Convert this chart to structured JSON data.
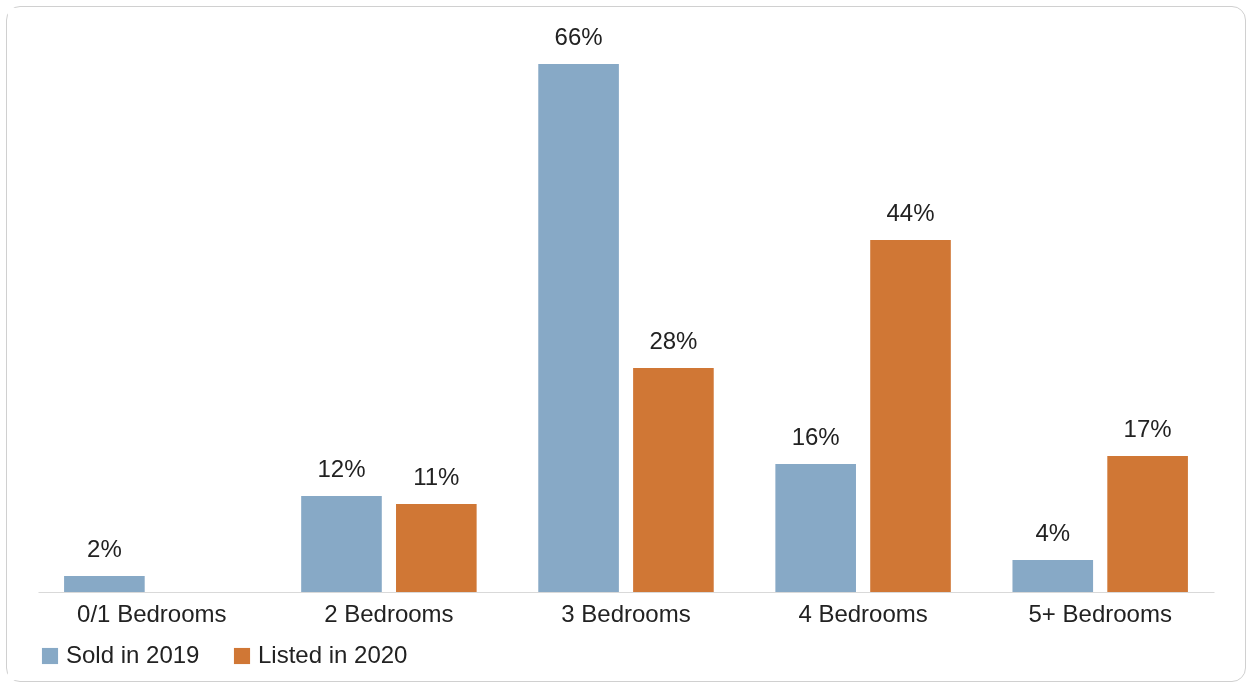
{
  "chart_data": {
    "type": "bar",
    "categories": [
      "0/1 Bedrooms",
      "2 Bedrooms",
      "3 Bedrooms",
      "4 Bedrooms",
      "5+ Bedrooms"
    ],
    "series": [
      {
        "name": "Sold in 2019",
        "color": "#87a9c6",
        "values": [
          2,
          12,
          66,
          16,
          4
        ],
        "value_labels": [
          "2%",
          "12%",
          "66%",
          "16%",
          "4%"
        ]
      },
      {
        "name": "Listed in 2020",
        "color": "#d07735",
        "values": [
          null,
          11,
          28,
          44,
          17
        ],
        "value_labels": [
          null,
          "11%",
          "28%",
          "44%",
          "17%"
        ]
      }
    ],
    "legend": "bottom",
    "grid": false
  }
}
